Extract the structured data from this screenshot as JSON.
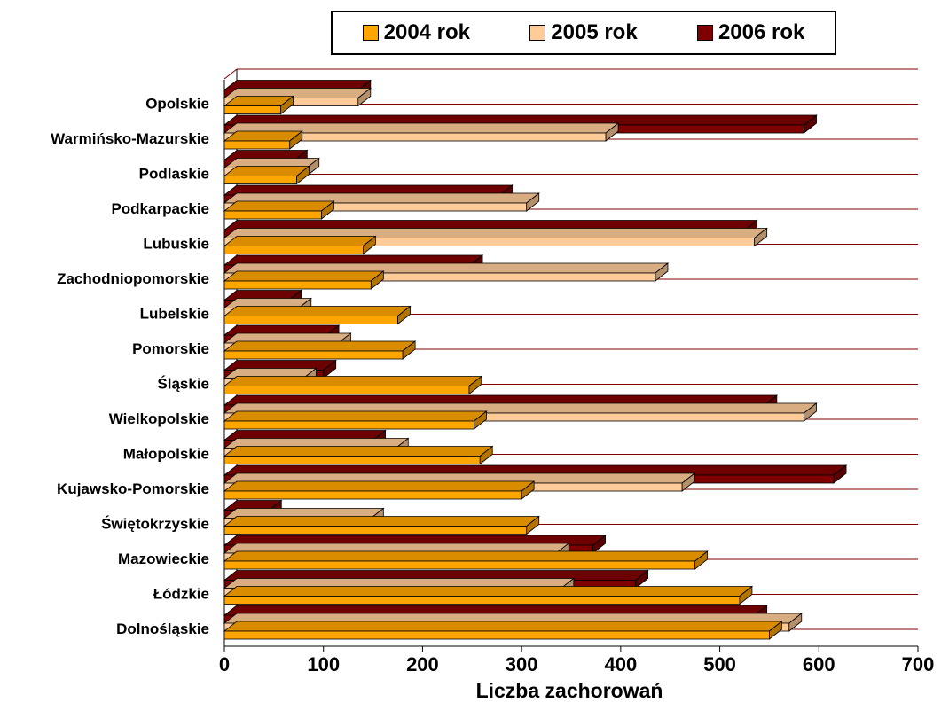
{
  "chart_data": {
    "type": "bar",
    "orientation": "horizontal",
    "style": "3d",
    "categories": [
      "Dolnośląskie",
      "Łódzkie",
      "Mazowieckie",
      "Świętokrzyskie",
      "Kujawsko-Pomorskie",
      "Małopolskie",
      "Wielkopolskie",
      "Śląskie",
      "Pomorskie",
      "Lubelskie",
      "Zachodniopomorskie",
      "Lubuskie",
      "Podkarpackie",
      "Podlaskie",
      "Warmińsko-Mazurskie",
      "Opolskie"
    ],
    "series": [
      {
        "name": "2004 rok",
        "color": "#FFA500",
        "values": [
          550,
          520,
          475,
          305,
          300,
          258,
          252,
          247,
          180,
          175,
          148,
          140,
          98,
          73,
          66,
          57
        ]
      },
      {
        "name": "2005 rok",
        "color": "#FFCC99",
        "values": [
          570,
          340,
          335,
          148,
          462,
          173,
          585,
          80,
          115,
          75,
          435,
          535,
          305,
          83,
          385,
          135
        ]
      },
      {
        "name": "2006 rok",
        "color": "#800000",
        "values": [
          535,
          415,
          372,
          45,
          615,
          150,
          545,
          100,
          103,
          65,
          248,
          525,
          278,
          71,
          585,
          135
        ]
      }
    ],
    "xlabel": "Liczba zachorowań",
    "ylabel": "",
    "xlim": [
      0,
      700
    ],
    "xticks": [
      "0",
      "100",
      "200",
      "300",
      "400",
      "500",
      "600",
      "700"
    ],
    "grid": true,
    "legend_position": "top"
  }
}
